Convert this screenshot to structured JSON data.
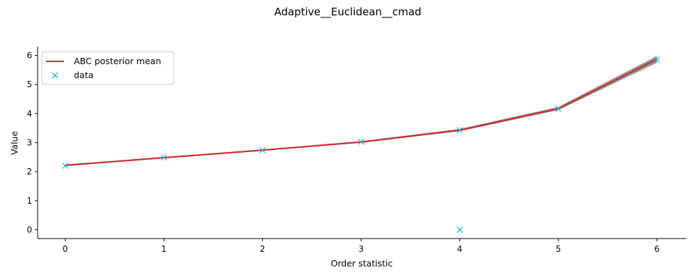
{
  "chart_data": {
    "type": "line",
    "title": "Adaptive__Euclidean__cmad",
    "xlabel": "Order statistic",
    "ylabel": "Value",
    "xlim": [
      -0.28,
      6.3
    ],
    "ylim": [
      -0.3,
      6.3
    ],
    "xticks": [
      0,
      1,
      2,
      3,
      4,
      5,
      6
    ],
    "yticks": [
      0,
      1,
      2,
      3,
      4,
      5,
      6
    ],
    "grid": false,
    "legend_position": "upper-left",
    "colors": {
      "mean": "#d62728",
      "band": "#808080",
      "data": "#17becf"
    },
    "series": [
      {
        "name": "ABC posterior mean",
        "kind": "line",
        "x": [
          0,
          1,
          2,
          3,
          4,
          5,
          6
        ],
        "values": [
          2.22,
          2.48,
          2.74,
          3.02,
          3.43,
          4.17,
          5.87
        ],
        "band_lower": [
          2.19,
          2.46,
          2.72,
          2.99,
          3.39,
          4.12,
          5.75
        ],
        "band_upper": [
          2.25,
          2.51,
          2.77,
          3.05,
          3.47,
          4.23,
          5.98
        ]
      },
      {
        "name": "data",
        "kind": "scatter",
        "x": [
          0,
          1,
          2,
          3,
          4,
          4,
          5,
          6
        ],
        "values": [
          2.2,
          2.49,
          2.74,
          3.03,
          3.43,
          0.0,
          4.16,
          5.86
        ]
      }
    ]
  }
}
